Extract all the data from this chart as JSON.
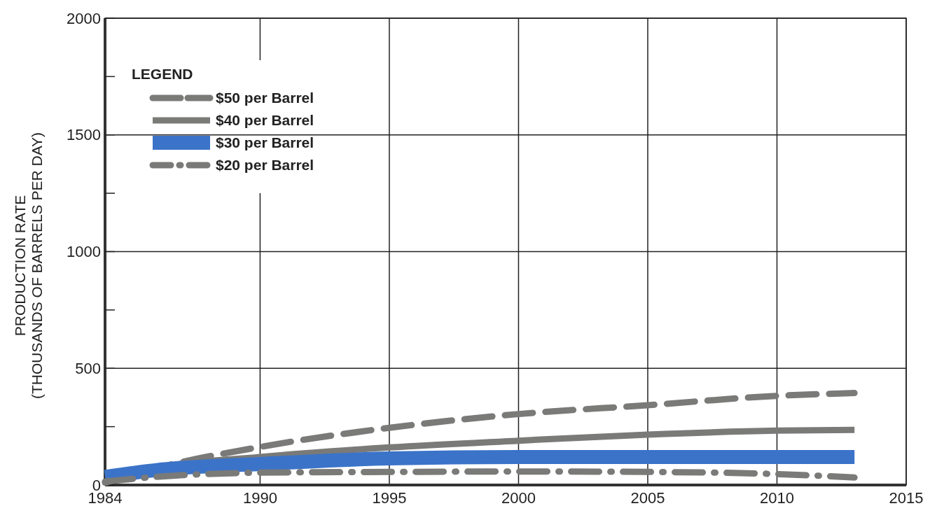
{
  "chart_data": {
    "type": "line",
    "ylabel": "PRODUCTION RATE\n(THOUSANDS OF BARRELS PER DAY)",
    "legend_title": "LEGEND",
    "legend": "top left",
    "grid": true,
    "xlim": [
      1984,
      2015
    ],
    "xticks": [
      1984,
      1990,
      1995,
      2000,
      2005,
      2010,
      2015
    ],
    "ylim": [
      0,
      2000
    ],
    "yticks": [
      0,
      {
        "value": 250,
        "label": null
      },
      500,
      {
        "value": 750,
        "label": null
      },
      1000,
      {
        "value": 1250,
        "label": null
      },
      1500,
      {
        "value": 1750,
        "label": null
      },
      2000
    ],
    "series": [
      {
        "name": "$50 per Barrel",
        "color": "#7a7a78",
        "line_style": "dashed",
        "x": [
          1984,
          1986,
          1990,
          1995,
          2000,
          2005,
          2010,
          2013
        ],
        "values": [
          10,
          73,
          163,
          245,
          304,
          342,
          382,
          394
        ]
      },
      {
        "name": "$40 per Barrel",
        "color": "#7a7a78",
        "line_style": "solid",
        "x": [
          1984,
          1986,
          1990,
          1995,
          2000,
          2005,
          2010,
          2013
        ],
        "values": [
          10,
          73,
          120,
          161,
          190,
          216,
          233,
          236
        ]
      },
      {
        "name": "$30 per Barrel",
        "color": "#3b73c8",
        "line_style": "solid",
        "x": [
          1984,
          1986,
          1990,
          1995,
          2000,
          2005,
          2010,
          2013
        ],
        "values": [
          35,
          64,
          90,
          114,
          120,
          120,
          120,
          120
        ]
      },
      {
        "name": "$20 per Barrel",
        "color": "#7a7a78",
        "line_style": "dashdot",
        "x": [
          1984,
          1986,
          1990,
          1995,
          2000,
          2005,
          2010,
          2013
        ],
        "values": [
          15,
          35,
          53,
          56,
          58,
          56,
          47,
          32
        ]
      }
    ]
  }
}
